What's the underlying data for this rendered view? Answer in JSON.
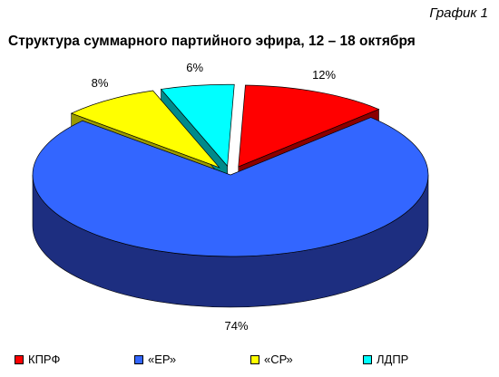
{
  "caption": "График 1",
  "chart_data": {
    "type": "pie",
    "title": "Структура суммарного партийного эфира, 12 – 18 октября",
    "slices": [
      {
        "name": "КПРФ",
        "value": 12,
        "label": "12%",
        "color": "#ff0000",
        "dark": "#8b0000"
      },
      {
        "name": "«ЕР»",
        "value": 74,
        "label": "74%",
        "color": "#3366ff",
        "dark": "#1d2e80"
      },
      {
        "name": "«СР»",
        "value": 8,
        "label": "8%",
        "color": "#ffff00",
        "dark": "#9a9a00"
      },
      {
        "name": "ЛДПР",
        "value": 6,
        "label": "6%",
        "color": "#00ffff",
        "dark": "#008a8a"
      }
    ],
    "exploded": [
      "КПРФ",
      "«СР»",
      "ЛДПР"
    ],
    "legend_position": "bottom"
  }
}
